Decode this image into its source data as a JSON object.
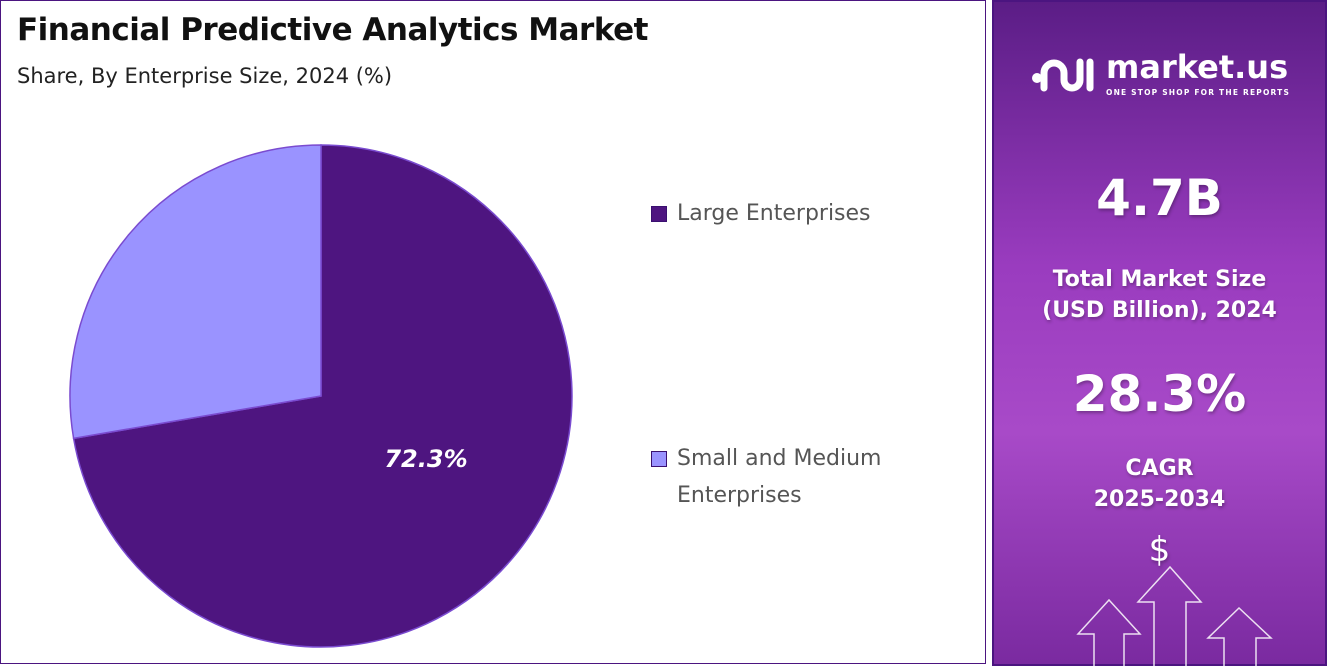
{
  "chart_data": {
    "type": "pie",
    "title": "Financial Predictive Analytics Market",
    "subtitle": "Share, By Enterprise Size, 2024 (%)",
    "categories": [
      "Large Enterprises",
      "Small and Medium Enterprises"
    ],
    "values": [
      72.3,
      27.7
    ],
    "data_labels": [
      "72.3%",
      ""
    ],
    "colors": [
      "#4e1580",
      "#9a93ff"
    ],
    "legend_position": "right"
  },
  "sidebar": {
    "brand": "market.us",
    "tagline": "ONE STOP SHOP FOR THE REPORTS",
    "market_size": "4.7B",
    "market_size_label_1": "Total Market Size",
    "market_size_label_2": "(USD Billion), 2024",
    "cagr": "28.3%",
    "cagr_label_1": "CAGR",
    "cagr_label_2": "2025-2034",
    "dollar_symbol": "$"
  }
}
